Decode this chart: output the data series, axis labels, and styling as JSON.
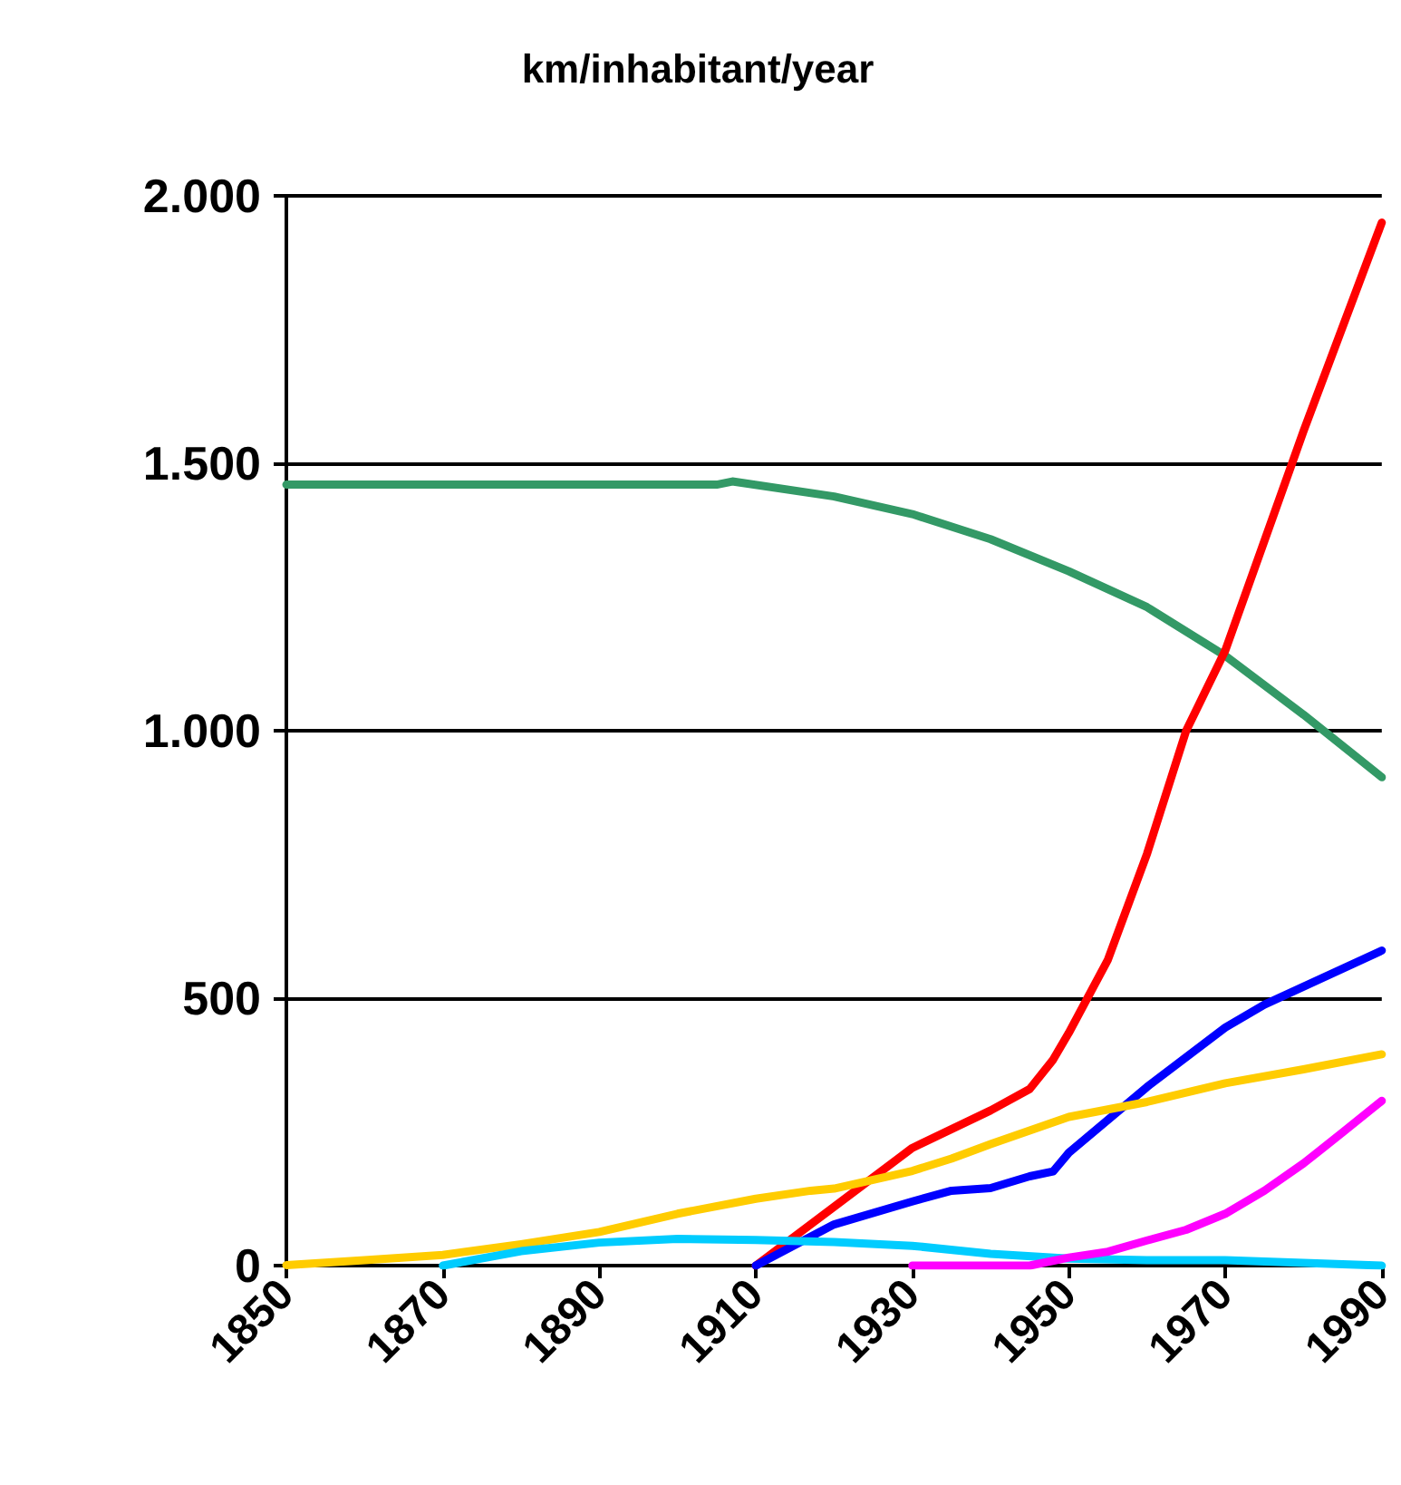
{
  "chart_data": {
    "type": "line",
    "title": "km/inhabitant/year",
    "xlim": [
      1850,
      1990
    ],
    "xticks": [
      1850,
      1870,
      1890,
      1910,
      1930,
      1950,
      1970,
      1990
    ],
    "ylim": [
      0,
      2000
    ],
    "yticks": [
      {
        "value": 0,
        "label": "0"
      },
      {
        "value": 500,
        "label": "500"
      },
      {
        "value": 1000,
        "label": "1.000"
      },
      {
        "value": 1500,
        "label": "1.500"
      },
      {
        "value": 2000,
        "label": "2.000"
      }
    ],
    "grid": "y",
    "marker": "none",
    "line_style": "solid",
    "series": [
      {
        "color": "#339966",
        "x": [
          1850,
          1860,
          1870,
          1880,
          1890,
          1900,
          1905,
          1907,
          1920,
          1930,
          1940,
          1950,
          1960,
          1970,
          1980,
          1990
        ],
        "values": [
          1460,
          1460,
          1460,
          1460,
          1460,
          1460,
          1460,
          1466,
          1438,
          1405,
          1358,
          1298,
          1231,
          1140,
          1030,
          913
        ]
      },
      {
        "color": "#ff0000",
        "x": [
          1910,
          1920,
          1930,
          1940,
          1945,
          1948,
          1950,
          1955,
          1960,
          1965,
          1970,
          1980,
          1990
        ],
        "values": [
          0,
          110,
          220,
          290,
          330,
          385,
          435,
          572,
          770,
          1000,
          1150,
          1560,
          1950
        ]
      },
      {
        "color": "#0000ff",
        "x": [
          1910,
          1920,
          1930,
          1935,
          1940,
          1945,
          1948,
          1950,
          1960,
          1970,
          1975,
          1990
        ],
        "values": [
          0,
          77,
          120,
          140,
          145,
          167,
          176,
          211,
          334,
          445,
          488,
          589
        ]
      },
      {
        "color": "#ffcc00",
        "x": [
          1850,
          1860,
          1870,
          1880,
          1890,
          1900,
          1910,
          1917,
          1920,
          1930,
          1935,
          1940,
          1950,
          1960,
          1970,
          1980,
          1990
        ],
        "values": [
          1,
          10,
          20,
          40,
          63,
          97,
          125,
          140,
          144,
          177,
          200,
          227,
          278,
          306,
          341,
          367,
          395
        ]
      },
      {
        "color": "#00ccff",
        "x": [
          1870,
          1880,
          1890,
          1900,
          1910,
          1920,
          1930,
          1940,
          1950,
          1960,
          1970,
          1980,
          1990
        ],
        "values": [
          0,
          27,
          43,
          50,
          48,
          44,
          37,
          22,
          13,
          10,
          10,
          5,
          0
        ]
      },
      {
        "color": "#ff00ff",
        "x": [
          1930,
          1945,
          1950,
          1955,
          1960,
          1965,
          1970,
          1975,
          1980,
          1985,
          1990
        ],
        "values": [
          0,
          0,
          15,
          26,
          47,
          67,
          97,
          140,
          191,
          249,
          308
        ]
      }
    ]
  }
}
